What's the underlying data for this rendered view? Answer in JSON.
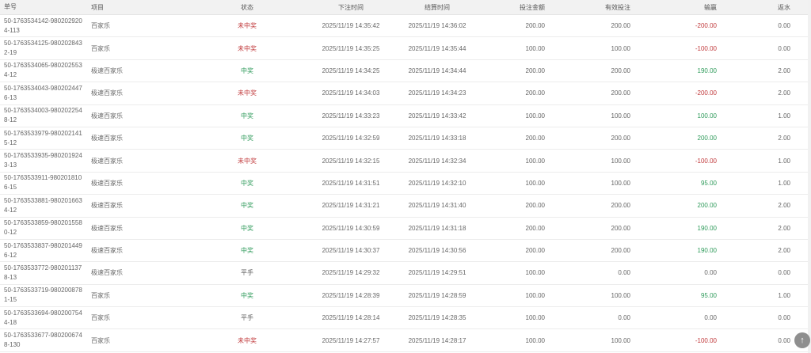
{
  "colors": {
    "lose": "#c0393b",
    "win": "#2e9a5a"
  },
  "columns": {
    "id": "单号",
    "game": "项目",
    "status": "状态",
    "bet_time": "下注时间",
    "settle_time": "结算时间",
    "amount": "投注金额",
    "valid": "有效投注",
    "winloss": "输赢",
    "rebate": "返水"
  },
  "rows": [
    {
      "id": "50-1763534142-9802029204-113",
      "game": "百家乐",
      "status": "未中奖",
      "bet_time": "2025/11/19 14:35:42",
      "settle_time": "2025/11/19 14:36:02",
      "amount": "200.00",
      "valid": "200.00",
      "winloss": "-200.00",
      "rebate": "0.00"
    },
    {
      "id": "50-1763534125-9802028432-19",
      "game": "百家乐",
      "status": "未中奖",
      "bet_time": "2025/11/19 14:35:25",
      "settle_time": "2025/11/19 14:35:44",
      "amount": "100.00",
      "valid": "100.00",
      "winloss": "-100.00",
      "rebate": "0.00"
    },
    {
      "id": "50-1763534065-9802025534-12",
      "game": "极速百家乐",
      "status": "中奖",
      "bet_time": "2025/11/19 14:34:25",
      "settle_time": "2025/11/19 14:34:44",
      "amount": "200.00",
      "valid": "200.00",
      "winloss": "190.00",
      "rebate": "2.00"
    },
    {
      "id": "50-1763534043-9802024476-13",
      "game": "极速百家乐",
      "status": "未中奖",
      "bet_time": "2025/11/19 14:34:03",
      "settle_time": "2025/11/19 14:34:23",
      "amount": "200.00",
      "valid": "200.00",
      "winloss": "-200.00",
      "rebate": "2.00"
    },
    {
      "id": "50-1763534003-9802022548-12",
      "game": "极速百家乐",
      "status": "中奖",
      "bet_time": "2025/11/19 14:33:23",
      "settle_time": "2025/11/19 14:33:42",
      "amount": "100.00",
      "valid": "100.00",
      "winloss": "100.00",
      "rebate": "1.00"
    },
    {
      "id": "50-1763533979-9802021415-12",
      "game": "极速百家乐",
      "status": "中奖",
      "bet_time": "2025/11/19 14:32:59",
      "settle_time": "2025/11/19 14:33:18",
      "amount": "200.00",
      "valid": "200.00",
      "winloss": "200.00",
      "rebate": "2.00"
    },
    {
      "id": "50-1763533935-9802019243-13",
      "game": "极速百家乐",
      "status": "未中奖",
      "bet_time": "2025/11/19 14:32:15",
      "settle_time": "2025/11/19 14:32:34",
      "amount": "100.00",
      "valid": "100.00",
      "winloss": "-100.00",
      "rebate": "1.00"
    },
    {
      "id": "50-1763533911-9802018106-15",
      "game": "极速百家乐",
      "status": "中奖",
      "bet_time": "2025/11/19 14:31:51",
      "settle_time": "2025/11/19 14:32:10",
      "amount": "100.00",
      "valid": "100.00",
      "winloss": "95.00",
      "rebate": "1.00"
    },
    {
      "id": "50-1763533881-9802016634-12",
      "game": "极速百家乐",
      "status": "中奖",
      "bet_time": "2025/11/19 14:31:21",
      "settle_time": "2025/11/19 14:31:40",
      "amount": "200.00",
      "valid": "200.00",
      "winloss": "200.00",
      "rebate": "2.00"
    },
    {
      "id": "50-1763533859-9802015580-12",
      "game": "极速百家乐",
      "status": "中奖",
      "bet_time": "2025/11/19 14:30:59",
      "settle_time": "2025/11/19 14:31:18",
      "amount": "200.00",
      "valid": "200.00",
      "winloss": "190.00",
      "rebate": "2.00"
    },
    {
      "id": "50-1763533837-9802014496-12",
      "game": "极速百家乐",
      "status": "中奖",
      "bet_time": "2025/11/19 14:30:37",
      "settle_time": "2025/11/19 14:30:56",
      "amount": "200.00",
      "valid": "200.00",
      "winloss": "190.00",
      "rebate": "2.00"
    },
    {
      "id": "50-1763533772-9802011378-13",
      "game": "极速百家乐",
      "status": "平手",
      "bet_time": "2025/11/19 14:29:32",
      "settle_time": "2025/11/19 14:29:51",
      "amount": "100.00",
      "valid": "0.00",
      "winloss": "0.00",
      "rebate": "0.00"
    },
    {
      "id": "50-1763533719-9802008781-15",
      "game": "百家乐",
      "status": "中奖",
      "bet_time": "2025/11/19 14:28:39",
      "settle_time": "2025/11/19 14:28:59",
      "amount": "100.00",
      "valid": "100.00",
      "winloss": "95.00",
      "rebate": "1.00"
    },
    {
      "id": "50-1763533694-9802007544-18",
      "game": "百家乐",
      "status": "平手",
      "bet_time": "2025/11/19 14:28:14",
      "settle_time": "2025/11/19 14:28:35",
      "amount": "100.00",
      "valid": "0.00",
      "winloss": "0.00",
      "rebate": "0.00"
    },
    {
      "id": "50-1763533677-9802006748-130",
      "game": "百家乐",
      "status": "未中奖",
      "bet_time": "2025/11/19 14:27:57",
      "settle_time": "2025/11/19 14:28:17",
      "amount": "100.00",
      "valid": "100.00",
      "winloss": "-100.00",
      "rebate": "0.00"
    }
  ],
  "back_to_top": {
    "icon": "arrow-up-icon",
    "glyph": "↑"
  }
}
